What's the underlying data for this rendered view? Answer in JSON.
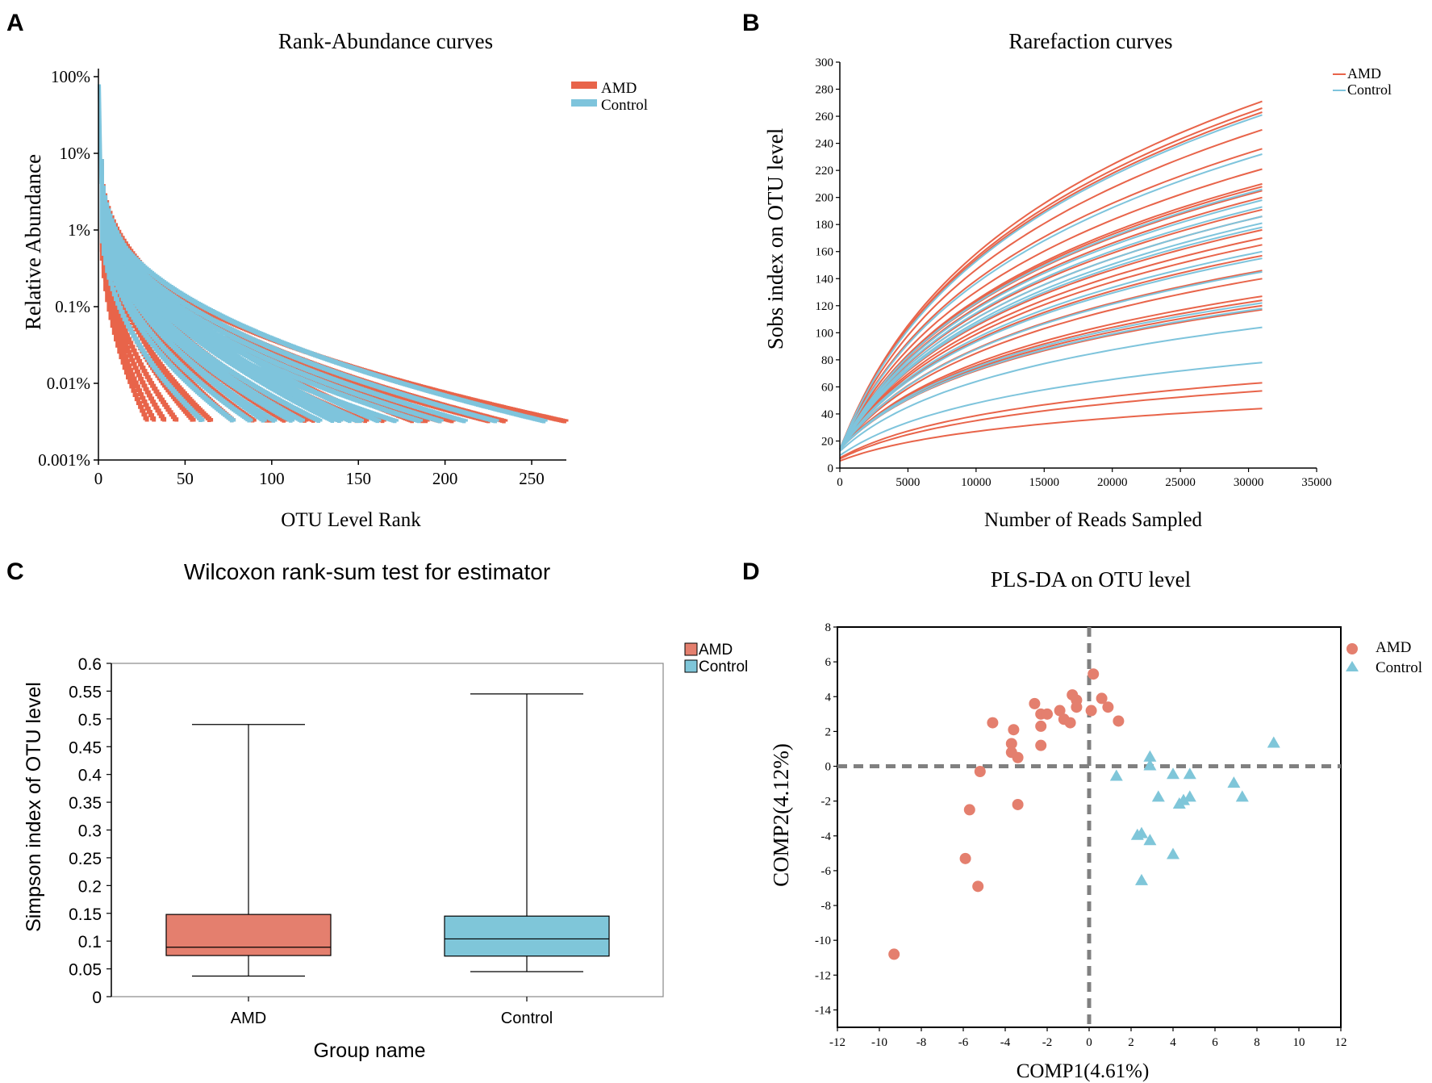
{
  "colors": {
    "amd": "#e8644a",
    "control": "#7ec4dc",
    "amd_box": "#e47f6e",
    "control_box": "#7fc6d9",
    "axis": "#000000",
    "dash": "#808080"
  },
  "chart_data": [
    {
      "panel": "A",
      "type": "line",
      "title": "Rank-Abundance curves",
      "xlabel": "OTU Level Rank",
      "ylabel": "Relative Abundance",
      "xlim": [
        0,
        270
      ],
      "ylim_log10_pct": [
        -3,
        2
      ],
      "x_ticks": [
        0,
        50,
        100,
        150,
        200,
        250
      ],
      "y_ticks": [
        "100%",
        "10%",
        "1%",
        "0.1%",
        "0.01%",
        "0.001%"
      ],
      "y_tick_values_log10_pct": [
        2,
        1,
        0,
        -1,
        -2,
        -3
      ],
      "detection_floor_log10_pct": -2.5,
      "legend": [
        {
          "name": "AMD",
          "color": "#e8644a"
        },
        {
          "name": "Control",
          "color": "#7ec4dc"
        }
      ],
      "series": [
        {
          "name": "AMD",
          "first_log10_pct": [
            0.25,
            0.35,
            0.4,
            0.45,
            0.5,
            0.55,
            0.6,
            0.6,
            0.65,
            0.7,
            0.75,
            0.8,
            0.85,
            0.9,
            0.5
          ],
          "richness": [
            28,
            32,
            38,
            45,
            55,
            65,
            90,
            98,
            108,
            125,
            140,
            150,
            165,
            182,
            190,
            198,
            205,
            226,
            270,
            235,
            188,
            155,
            120,
            100,
            78,
            60
          ]
        },
        {
          "name": "Control",
          "first_log10_pct": [
            0.3,
            0.4,
            0.45,
            0.5,
            0.55,
            0.6,
            0.65,
            0.7,
            0.8,
            0.9
          ],
          "richness": [
            60,
            78,
            88,
            102,
            112,
            128,
            140,
            146,
            152,
            162,
            172,
            186,
            198,
            212,
            230,
            258,
            118,
            96,
            136,
            150
          ]
        }
      ]
    },
    {
      "panel": "B",
      "type": "line",
      "title": "Rarefaction curves",
      "xlabel": "Number of Reads Sampled",
      "ylabel": "Sobs index on OTU level",
      "xlim": [
        0,
        35000
      ],
      "ylim": [
        0,
        300
      ],
      "x_ticks": [
        0,
        5000,
        10000,
        15000,
        20000,
        25000,
        30000,
        35000
      ],
      "y_ticks": [
        0,
        20,
        40,
        60,
        80,
        100,
        120,
        140,
        160,
        180,
        200,
        220,
        240,
        260,
        280,
        300
      ],
      "max_reads": 31000,
      "legend": [
        {
          "name": "AMD",
          "color": "#e8644a"
        },
        {
          "name": "Control",
          "color": "#7ec4dc"
        }
      ],
      "series": [
        {
          "name": "AMD",
          "final_sobs": [
            271,
            266,
            263,
            250,
            236,
            221,
            210,
            208,
            205,
            200,
            191,
            186,
            176,
            170,
            165,
            157,
            146,
            140,
            127,
            124,
            120,
            117,
            63,
            57,
            44
          ]
        },
        {
          "name": "Control",
          "final_sobs": [
            261,
            232,
            206,
            198,
            193,
            186,
            181,
            178,
            160,
            155,
            145,
            122,
            118,
            104,
            78
          ]
        }
      ]
    },
    {
      "panel": "C",
      "type": "box",
      "title": "Wilcoxon rank-sum test for estimator",
      "xlabel": "Group name",
      "ylabel": "Simpson index of OTU level",
      "ylim": [
        0,
        0.6
      ],
      "y_ticks": [
        "0",
        "0.05",
        "0.1",
        "0.15",
        "0.2",
        "0.25",
        "0.3",
        "0.35",
        "0.4",
        "0.45",
        "0.5",
        "0.55",
        "0.6"
      ],
      "y_tick_values": [
        0,
        0.05,
        0.1,
        0.15,
        0.2,
        0.25,
        0.3,
        0.35,
        0.4,
        0.45,
        0.5,
        0.55,
        0.6
      ],
      "categories": [
        "AMD",
        "Control"
      ],
      "legend": [
        {
          "name": "AMD",
          "color": "#e47f6e"
        },
        {
          "name": "Control",
          "color": "#7fc6d9"
        }
      ],
      "boxes": [
        {
          "name": "AMD",
          "min": 0.037,
          "q1": 0.074,
          "median": 0.089,
          "q3": 0.148,
          "max": 0.49
        },
        {
          "name": "Control",
          "min": 0.045,
          "q1": 0.073,
          "median": 0.104,
          "q3": 0.145,
          "max": 0.545
        }
      ]
    },
    {
      "panel": "D",
      "type": "scatter",
      "title": "PLS-DA on OTU level",
      "xlabel": "COMP1(4.61%)",
      "ylabel": "COMP2(4.12%)",
      "xlim": [
        -12,
        12
      ],
      "ylim": [
        -15,
        8
      ],
      "x_ticks": [
        -12,
        -10,
        -8,
        -6,
        -4,
        -2,
        0,
        2,
        4,
        6,
        8,
        10,
        12
      ],
      "y_ticks": [
        -14,
        -12,
        -10,
        -8,
        -6,
        -4,
        -2,
        0,
        2,
        4,
        6,
        8
      ],
      "legend": [
        {
          "name": "AMD",
          "color": "#e47f6e"
        },
        {
          "name": "Control",
          "color": "#7fc6d9"
        }
      ],
      "series": [
        {
          "name": "AMD",
          "marker": "circle",
          "points": [
            [
              -9.3,
              -10.8
            ],
            [
              -5.3,
              -6.9
            ],
            [
              -5.9,
              -5.3
            ],
            [
              -5.7,
              -2.5
            ],
            [
              -5.2,
              -0.3
            ],
            [
              -4.6,
              2.5
            ],
            [
              -3.7,
              1.3
            ],
            [
              -3.7,
              0.8
            ],
            [
              -3.6,
              2.1
            ],
            [
              -3.4,
              0.5
            ],
            [
              -3.4,
              -2.2
            ],
            [
              -2.6,
              3.6
            ],
            [
              -2.3,
              3.0
            ],
            [
              -2.3,
              2.3
            ],
            [
              -2.3,
              1.2
            ],
            [
              -2.0,
              3.0
            ],
            [
              -1.4,
              3.2
            ],
            [
              -1.2,
              2.7
            ],
            [
              -0.9,
              2.5
            ],
            [
              -0.8,
              4.1
            ],
            [
              -0.6,
              3.8
            ],
            [
              -0.6,
              3.4
            ],
            [
              0.2,
              5.3
            ],
            [
              0.1,
              3.2
            ],
            [
              0.6,
              3.9
            ],
            [
              0.9,
              3.4
            ],
            [
              1.4,
              2.6
            ]
          ]
        },
        {
          "name": "Control",
          "marker": "triangle",
          "points": [
            [
              1.3,
              -0.6
            ],
            [
              2.9,
              0.5
            ],
            [
              2.9,
              0.0
            ],
            [
              3.3,
              -1.8
            ],
            [
              2.3,
              -4.0
            ],
            [
              2.5,
              -3.9
            ],
            [
              2.9,
              -4.3
            ],
            [
              2.5,
              -6.6
            ],
            [
              4.0,
              -0.5
            ],
            [
              4.0,
              -5.1
            ],
            [
              4.3,
              -2.2
            ],
            [
              4.5,
              -2.0
            ],
            [
              4.8,
              -1.8
            ],
            [
              4.8,
              -0.5
            ],
            [
              6.9,
              -1.0
            ],
            [
              7.3,
              -1.8
            ],
            [
              8.8,
              1.3
            ]
          ]
        }
      ]
    }
  ],
  "panels": {
    "a_label": "A",
    "b_label": "B",
    "c_label": "C",
    "d_label": "D"
  }
}
